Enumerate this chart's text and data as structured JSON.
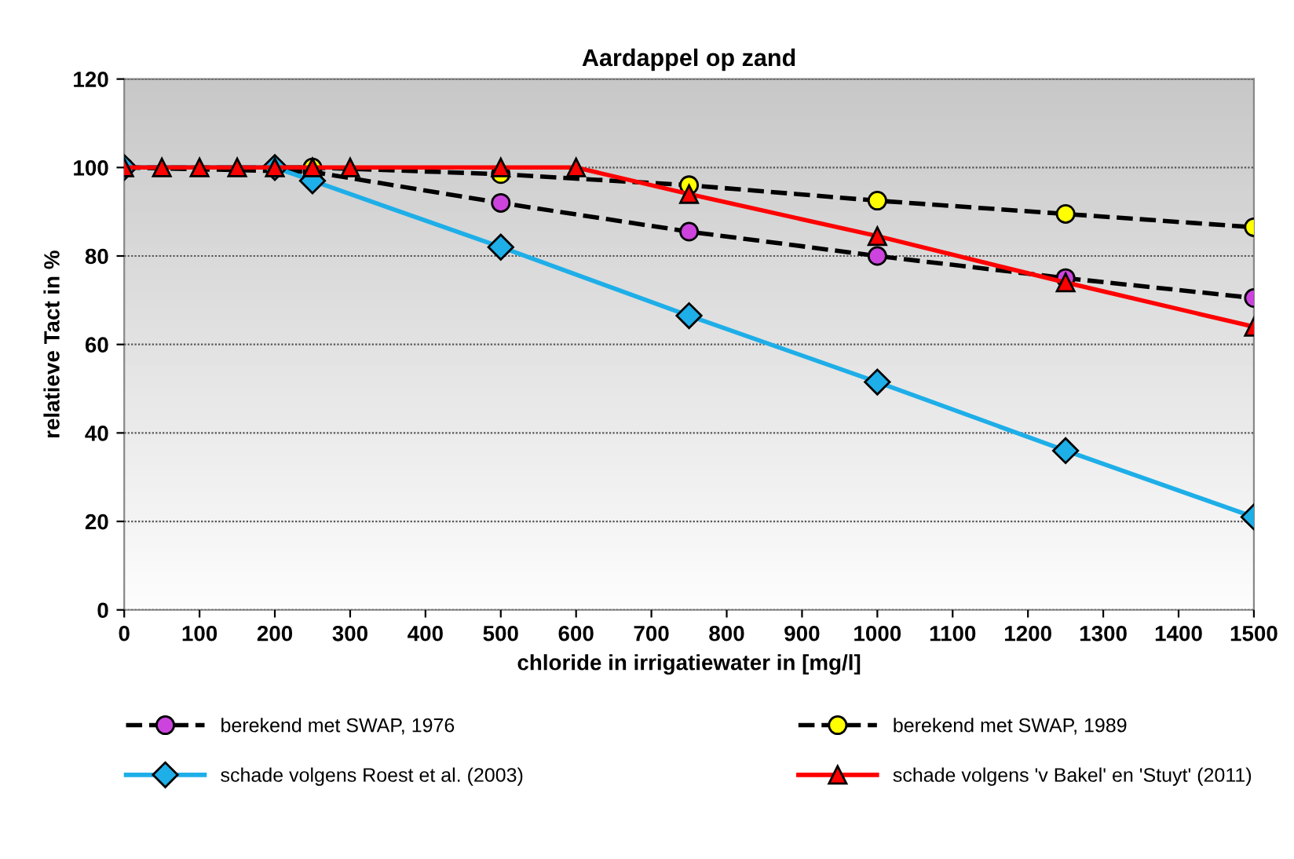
{
  "chart_data": {
    "type": "line",
    "title": "Aardappel op zand",
    "xlabel": "chloride in irrigatiewater in [mg/l]",
    "ylabel": "relatieve Tact in %",
    "xlim": [
      0,
      1500
    ],
    "xticks": [
      0,
      100,
      200,
      300,
      400,
      500,
      600,
      700,
      800,
      900,
      1000,
      1100,
      1200,
      1300,
      1400,
      1500
    ],
    "ylim": [
      0,
      120
    ],
    "yticks": [
      0,
      20,
      40,
      60,
      80,
      100,
      120
    ],
    "grid": "y",
    "legend": "bottom",
    "series": [
      {
        "name": "berekend met SWAP, 1976",
        "color": "#cc44dd",
        "marker": "circle",
        "line_style": "dashed",
        "x": [
          0,
          250,
          500,
          750,
          1000,
          1250,
          1500
        ],
        "values": [
          100,
          99,
          92,
          85.5,
          80,
          75,
          70.5
        ]
      },
      {
        "name": "berekend met SWAP, 1989",
        "color": "#ffff00",
        "marker": "circle",
        "line_style": "dashed",
        "x": [
          0,
          250,
          500,
          750,
          1000,
          1250,
          1500
        ],
        "values": [
          100,
          100,
          98.5,
          96,
          92.5,
          89.5,
          86.5
        ]
      },
      {
        "name": "schade volgens Roest et al. (2003)",
        "color": "#1eaee8",
        "marker": "diamond",
        "line_style": "solid",
        "x": [
          0,
          200,
          250,
          500,
          750,
          1000,
          1250,
          1500
        ],
        "values": [
          100,
          100,
          97,
          82,
          66.5,
          51.5,
          36,
          21
        ]
      },
      {
        "name": "schade volgens 'v Bakel' en 'Stuyt' (2011)",
        "color": "#ff0000",
        "marker": "triangle",
        "line_style": "solid",
        "x": [
          0,
          50,
          100,
          150,
          200,
          250,
          300,
          500,
          600,
          750,
          1000,
          1250,
          1500
        ],
        "values": [
          100,
          100,
          100,
          100,
          100,
          100,
          100,
          100,
          100,
          94,
          84.5,
          74,
          64
        ]
      }
    ]
  }
}
